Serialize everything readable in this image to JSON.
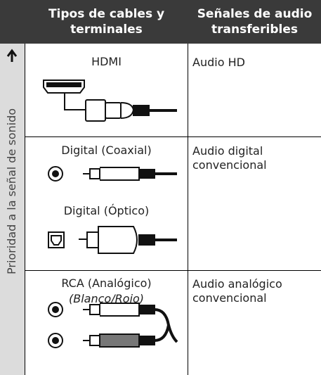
{
  "header": {
    "columns": [
      "Tipos de cables y terminales",
      "Señales de audio transferibles"
    ]
  },
  "sidebar": "Prioridad a la señal de sonido",
  "rows": [
    {
      "cables": [
        "HDMI"
      ],
      "signal": "Audio HD"
    },
    {
      "cables": [
        "Digital (Coaxial)",
        "Digital (Óptico)"
      ],
      "signal": "Audio digital convencional"
    },
    {
      "cables": [
        "RCA (Analógico)"
      ],
      "note": "(Blanco/Rojo)",
      "signal": "Audio analógico convencional"
    }
  ]
}
